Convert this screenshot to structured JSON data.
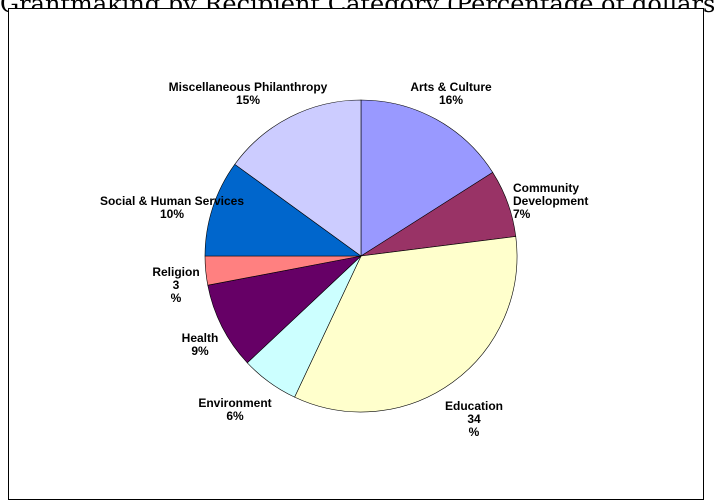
{
  "caption": "Grantmaking by Recipient Category (Percentage of dollars)",
  "chart_data": {
    "type": "pie",
    "title": "",
    "slices": [
      {
        "name": "Arts & Culture",
        "value": 16,
        "label_lines": [
          "Arts & Culture",
          "16%"
        ],
        "color": "#9999ff"
      },
      {
        "name": "Community Development",
        "value": 7,
        "label_lines": [
          "Community",
          "Development",
          "7%"
        ],
        "color": "#993366"
      },
      {
        "name": "Education",
        "value": 34,
        "label_lines": [
          "Education",
          "34",
          "%"
        ],
        "color": "#ffffcc"
      },
      {
        "name": "Environment",
        "value": 6,
        "label_lines": [
          "Environment",
          "6%"
        ],
        "color": "#ccffff"
      },
      {
        "name": "Health",
        "value": 9,
        "label_lines": [
          "Health",
          "9%"
        ],
        "color": "#660066"
      },
      {
        "name": "Religion",
        "value": 3,
        "label_lines": [
          "Religion",
          "3",
          "%"
        ],
        "color": "#ff8080"
      },
      {
        "name": "Social & Human Services",
        "value": 10,
        "label_lines": [
          "Social & Human Services",
          "10%"
        ],
        "color": "#0066cc"
      },
      {
        "name": "Miscellaneous Philanthropy",
        "value": 15,
        "label_lines": [
          "Miscellaneous Philanthropy",
          "15%"
        ],
        "color": "#ccccff"
      }
    ]
  }
}
